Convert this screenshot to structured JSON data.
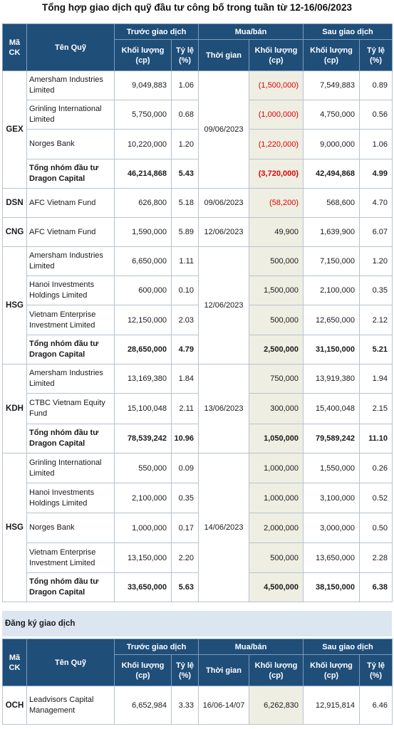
{
  "title": "Tổng hợp giao dịch quỹ đầu tư công bố trong tuần từ 12-16/06/2023",
  "headers": {
    "ma_ck": "Mã CK",
    "ten_quy": "Tên Quỹ",
    "truoc": "Trước giao dịch",
    "muaban": "Mua/bán",
    "sau": "Sau giao dịch",
    "khoi_luong": "Khối lượng (cp)",
    "ty_le": "Tỷ lệ (%)",
    "thoi_gian": "Thời gian"
  },
  "groups": [
    {
      "ck": "GEX",
      "time": "09/06/2023",
      "rows": [
        {
          "name": "Amersham Industries Limited",
          "kl_truoc": "9,049,883",
          "tl_truoc": "1.06",
          "kl_mb": "(1,500,000)",
          "kl_sau": "7,549,883",
          "tl_sau": "0.89"
        },
        {
          "name": "Grinling International Limited",
          "kl_truoc": "5,750,000",
          "tl_truoc": "0.68",
          "kl_mb": "(1,000,000)",
          "kl_sau": "4,750,000",
          "tl_sau": "0.56"
        },
        {
          "name": "Norges Bank",
          "kl_truoc": "10,220,000",
          "tl_truoc": "1.20",
          "kl_mb": "(1,220,000)",
          "kl_sau": "9,000,000",
          "tl_sau": "1.06"
        },
        {
          "name": "Tổng nhóm đầu tư Dragon Capital",
          "kl_truoc": "46,214,868",
          "tl_truoc": "5.43",
          "kl_mb": "(3,720,000)",
          "kl_sau": "42,494,868",
          "tl_sau": "4.99"
        }
      ]
    },
    {
      "ck": "DSN",
      "time": "09/06/2023",
      "rows": [
        {
          "name": "AFC Vietnam Fund",
          "kl_truoc": "626,800",
          "tl_truoc": "5.18",
          "kl_mb": "(58,200)",
          "kl_sau": "568,600",
          "tl_sau": "4.70"
        }
      ]
    },
    {
      "ck": "CNG",
      "time": "12/06/2023",
      "rows": [
        {
          "name": "AFC Vietnam Fund",
          "kl_truoc": "1,590,000",
          "tl_truoc": "5.89",
          "kl_mb": "49,900",
          "kl_sau": "1,639,900",
          "tl_sau": "6.07"
        }
      ]
    },
    {
      "ck": "HSG",
      "time": "12/06/2023",
      "rows": [
        {
          "name": "Amersham Industries Limited",
          "kl_truoc": "6,650,000",
          "tl_truoc": "1.11",
          "kl_mb": "500,000",
          "kl_sau": "7,150,000",
          "tl_sau": "1.20"
        },
        {
          "name": "Hanoi Investments Holdings Limited",
          "kl_truoc": "600,000",
          "tl_truoc": "0.10",
          "kl_mb": "1,500,000",
          "kl_sau": "2,100,000",
          "tl_sau": "0.35"
        },
        {
          "name": "Vietnam Enterprise Investment Limited",
          "kl_truoc": "12,150,000",
          "tl_truoc": "2.03",
          "kl_mb": "500,000",
          "kl_sau": "12,650,000",
          "tl_sau": "2.12"
        },
        {
          "name": "Tổng nhóm đầu tư Dragon Capital",
          "kl_truoc": "28,650,000",
          "tl_truoc": "4.79",
          "kl_mb": "2,500,000",
          "kl_sau": "31,150,000",
          "tl_sau": "5.21"
        }
      ]
    },
    {
      "ck": "KDH",
      "time": "13/06/2023",
      "rows": [
        {
          "name": "Amersham Industries Limited",
          "kl_truoc": "13,169,380",
          "tl_truoc": "1.84",
          "kl_mb": "750,000",
          "kl_sau": "13,919,380",
          "tl_sau": "1.94"
        },
        {
          "name": "CTBC Vietnam Equity Fund",
          "kl_truoc": "15,100,048",
          "tl_truoc": "2.11",
          "kl_mb": "300,000",
          "kl_sau": "15,400,048",
          "tl_sau": "2.15"
        },
        {
          "name": "Tổng nhóm đầu tư Dragon Capital",
          "kl_truoc": "78,539,242",
          "tl_truoc": "10.96",
          "kl_mb": "1,050,000",
          "kl_sau": "79,589,242",
          "tl_sau": "11.10"
        }
      ]
    },
    {
      "ck": "HSG",
      "time": "14/06/2023",
      "rows": [
        {
          "name": "Grinling International Limited",
          "kl_truoc": "550,000",
          "tl_truoc": "0.09",
          "kl_mb": "1,000,000",
          "kl_sau": "1,550,000",
          "tl_sau": "0.26"
        },
        {
          "name": "Hanoi Investments Holdings Limited",
          "kl_truoc": "2,100,000",
          "tl_truoc": "0.35",
          "kl_mb": "1,000,000",
          "kl_sau": "3,100,000",
          "tl_sau": "0.52"
        },
        {
          "name": "Norges Bank",
          "kl_truoc": "1,000,000",
          "tl_truoc": "0.17",
          "kl_mb": "2,000,000",
          "kl_sau": "3,000,000",
          "tl_sau": "0.50"
        },
        {
          "name": "Vietnam Enterprise Investment Limited",
          "kl_truoc": "13,150,000",
          "tl_truoc": "2.20",
          "kl_mb": "500,000",
          "kl_sau": "13,650,000",
          "tl_sau": "2.28"
        },
        {
          "name": "Tổng nhóm đầu tư Dragon Capital",
          "kl_truoc": "33,650,000",
          "tl_truoc": "5.63",
          "kl_mb": "4,500,000",
          "kl_sau": "38,150,000",
          "tl_sau": "6.38"
        }
      ]
    }
  ],
  "section2_title": "Đăng ký giao dịch",
  "registration": [
    {
      "ck": "OCH",
      "name": "Leadvisors Capital Management",
      "kl_truoc": "6,652,984",
      "tl_truoc": "3.33",
      "time": "16/06-14/07",
      "kl_mb": "6,262,830",
      "kl_sau": "12,915,814",
      "tl_sau": "6.46"
    }
  ],
  "colors": {
    "header_bg": "#1f4e79",
    "negative": "#e00000",
    "muaban_bg": "#efeee3",
    "section_bg": "#dce6f1"
  }
}
